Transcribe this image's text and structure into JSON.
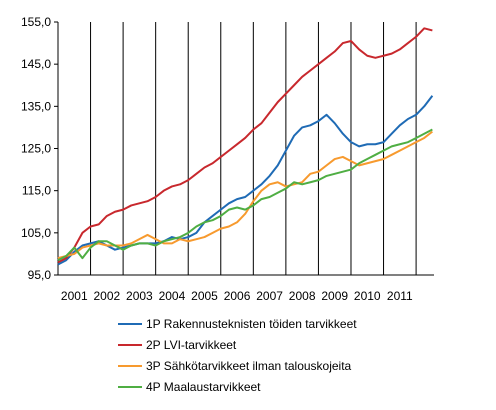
{
  "chart_data": {
    "type": "line",
    "title": "",
    "xlabel": "",
    "ylabel": "",
    "ylim": [
      95,
      155
    ],
    "yticks": [
      "95,0",
      "105,0",
      "115,0",
      "125,0",
      "135,0",
      "145,0",
      "155,0"
    ],
    "ytick_values": [
      95,
      105,
      115,
      125,
      135,
      145,
      155
    ],
    "xlim": [
      2000.0,
      2011.55
    ],
    "xticks": [
      "2001",
      "2002",
      "2003",
      "2004",
      "2005",
      "2006",
      "2007",
      "2008",
      "2009",
      "2010",
      "2011"
    ],
    "xtick_values": [
      2000.5,
      2001.5,
      2002.5,
      2003.5,
      2004.5,
      2005.5,
      2006.5,
      2007.5,
      2008.5,
      2009.5,
      2010.5
    ],
    "grid": "vertical year separators",
    "legend_position": "bottom",
    "series": [
      {
        "name": "1P Rakennusteknisten  töiden tarvikkeet",
        "color": "#1f6bb5",
        "points": [
          [
            2000.0,
            97.5
          ],
          [
            2000.25,
            98.5
          ],
          [
            2000.5,
            100.5
          ],
          [
            2000.75,
            102.0
          ],
          [
            2001.0,
            102.5
          ],
          [
            2001.25,
            103.0
          ],
          [
            2001.5,
            102.0
          ],
          [
            2001.75,
            101.0
          ],
          [
            2002.0,
            101.5
          ],
          [
            2002.25,
            102.0
          ],
          [
            2002.5,
            102.5
          ],
          [
            2002.75,
            102.5
          ],
          [
            2003.0,
            102.5
          ],
          [
            2003.25,
            103.0
          ],
          [
            2003.5,
            104.0
          ],
          [
            2003.75,
            103.5
          ],
          [
            2004.0,
            104.0
          ],
          [
            2004.25,
            105.0
          ],
          [
            2004.5,
            107.5
          ],
          [
            2004.75,
            109.0
          ],
          [
            2005.0,
            110.5
          ],
          [
            2005.25,
            112.0
          ],
          [
            2005.5,
            113.0
          ],
          [
            2005.75,
            113.5
          ],
          [
            2006.0,
            115.0
          ],
          [
            2006.25,
            116.5
          ],
          [
            2006.5,
            118.5
          ],
          [
            2006.75,
            121.0
          ],
          [
            2007.0,
            124.5
          ],
          [
            2007.25,
            128.0
          ],
          [
            2007.5,
            130.0
          ],
          [
            2007.75,
            130.5
          ],
          [
            2008.0,
            131.5
          ],
          [
            2008.25,
            133.0
          ],
          [
            2008.5,
            131.0
          ],
          [
            2008.75,
            128.5
          ],
          [
            2009.0,
            126.5
          ],
          [
            2009.25,
            125.5
          ],
          [
            2009.5,
            126.0
          ],
          [
            2009.75,
            126.0
          ],
          [
            2010.0,
            126.5
          ],
          [
            2010.25,
            128.5
          ],
          [
            2010.5,
            130.5
          ],
          [
            2010.75,
            132.0
          ],
          [
            2011.0,
            133.0
          ],
          [
            2011.25,
            135.0
          ],
          [
            2011.5,
            137.5
          ]
        ]
      },
      {
        "name": "2P LVI-tarvikkeet",
        "color": "#c8282d",
        "points": [
          [
            2000.0,
            98.0
          ],
          [
            2000.25,
            99.0
          ],
          [
            2000.5,
            101.5
          ],
          [
            2000.75,
            105.0
          ],
          [
            2001.0,
            106.5
          ],
          [
            2001.25,
            107.0
          ],
          [
            2001.5,
            109.0
          ],
          [
            2001.75,
            110.0
          ],
          [
            2002.0,
            110.5
          ],
          [
            2002.25,
            111.5
          ],
          [
            2002.5,
            112.0
          ],
          [
            2002.75,
            112.5
          ],
          [
            2003.0,
            113.5
          ],
          [
            2003.25,
            115.0
          ],
          [
            2003.5,
            116.0
          ],
          [
            2003.75,
            116.5
          ],
          [
            2004.0,
            117.5
          ],
          [
            2004.25,
            119.0
          ],
          [
            2004.5,
            120.5
          ],
          [
            2004.75,
            121.5
          ],
          [
            2005.0,
            123.0
          ],
          [
            2005.25,
            124.5
          ],
          [
            2005.5,
            126.0
          ],
          [
            2005.75,
            127.5
          ],
          [
            2006.0,
            129.5
          ],
          [
            2006.25,
            131.0
          ],
          [
            2006.5,
            133.5
          ],
          [
            2006.75,
            136.0
          ],
          [
            2007.0,
            138.0
          ],
          [
            2007.25,
            140.0
          ],
          [
            2007.5,
            142.0
          ],
          [
            2007.75,
            143.5
          ],
          [
            2008.0,
            145.0
          ],
          [
            2008.25,
            146.5
          ],
          [
            2008.5,
            148.0
          ],
          [
            2008.75,
            150.0
          ],
          [
            2009.0,
            150.5
          ],
          [
            2009.25,
            148.5
          ],
          [
            2009.5,
            147.0
          ],
          [
            2009.75,
            146.5
          ],
          [
            2010.0,
            147.0
          ],
          [
            2010.25,
            147.5
          ],
          [
            2010.5,
            148.5
          ],
          [
            2010.75,
            150.0
          ],
          [
            2011.0,
            151.5
          ],
          [
            2011.25,
            153.5
          ],
          [
            2011.5,
            153.0
          ]
        ]
      },
      {
        "name": "3P Sähkötarvikkeet  ilman talouskojeita",
        "color": "#f79a2e",
        "points": [
          [
            2000.0,
            99.0
          ],
          [
            2000.25,
            99.5
          ],
          [
            2000.5,
            100.0
          ],
          [
            2000.75,
            101.5
          ],
          [
            2001.0,
            102.0
          ],
          [
            2001.25,
            102.5
          ],
          [
            2001.5,
            102.0
          ],
          [
            2001.75,
            102.0
          ],
          [
            2002.0,
            102.0
          ],
          [
            2002.25,
            102.5
          ],
          [
            2002.5,
            103.5
          ],
          [
            2002.75,
            104.5
          ],
          [
            2003.0,
            103.5
          ],
          [
            2003.25,
            102.5
          ],
          [
            2003.5,
            102.5
          ],
          [
            2003.75,
            103.5
          ],
          [
            2004.0,
            103.0
          ],
          [
            2004.25,
            103.5
          ],
          [
            2004.5,
            104.0
          ],
          [
            2004.75,
            105.0
          ],
          [
            2005.0,
            106.0
          ],
          [
            2005.25,
            106.5
          ],
          [
            2005.5,
            107.5
          ],
          [
            2005.75,
            109.5
          ],
          [
            2006.0,
            112.5
          ],
          [
            2006.25,
            115.0
          ],
          [
            2006.5,
            116.5
          ],
          [
            2006.75,
            117.0
          ],
          [
            2007.0,
            116.0
          ],
          [
            2007.25,
            116.5
          ],
          [
            2007.5,
            117.0
          ],
          [
            2007.75,
            119.0
          ],
          [
            2008.0,
            119.5
          ],
          [
            2008.25,
            121.0
          ],
          [
            2008.5,
            122.5
          ],
          [
            2008.75,
            123.0
          ],
          [
            2009.0,
            122.0
          ],
          [
            2009.25,
            121.0
          ],
          [
            2009.5,
            121.5
          ],
          [
            2009.75,
            122.0
          ],
          [
            2010.0,
            122.5
          ],
          [
            2010.25,
            123.5
          ],
          [
            2010.5,
            124.5
          ],
          [
            2010.75,
            125.5
          ],
          [
            2011.0,
            126.5
          ],
          [
            2011.25,
            127.5
          ],
          [
            2011.5,
            129.0
          ]
        ]
      },
      {
        "name": "4P Maalaustarvikkeet",
        "color": "#4fae43",
        "points": [
          [
            2000.0,
            98.5
          ],
          [
            2000.25,
            99.5
          ],
          [
            2000.5,
            101.5
          ],
          [
            2000.75,
            99.0
          ],
          [
            2001.0,
            101.5
          ],
          [
            2001.25,
            103.0
          ],
          [
            2001.5,
            103.0
          ],
          [
            2001.75,
            102.0
          ],
          [
            2002.0,
            101.0
          ],
          [
            2002.25,
            102.0
          ],
          [
            2002.5,
            102.5
          ],
          [
            2002.75,
            102.5
          ],
          [
            2003.0,
            102.0
          ],
          [
            2003.25,
            103.0
          ],
          [
            2003.5,
            103.5
          ],
          [
            2003.75,
            104.0
          ],
          [
            2004.0,
            105.0
          ],
          [
            2004.25,
            106.5
          ],
          [
            2004.5,
            107.5
          ],
          [
            2004.75,
            108.0
          ],
          [
            2005.0,
            109.0
          ],
          [
            2005.25,
            110.5
          ],
          [
            2005.5,
            111.0
          ],
          [
            2005.75,
            110.5
          ],
          [
            2006.0,
            111.5
          ],
          [
            2006.25,
            113.0
          ],
          [
            2006.5,
            113.5
          ],
          [
            2006.75,
            114.5
          ],
          [
            2007.0,
            115.5
          ],
          [
            2007.25,
            117.0
          ],
          [
            2007.5,
            116.5
          ],
          [
            2007.75,
            117.0
          ],
          [
            2008.0,
            117.5
          ],
          [
            2008.25,
            118.5
          ],
          [
            2008.5,
            119.0
          ],
          [
            2008.75,
            119.5
          ],
          [
            2009.0,
            120.0
          ],
          [
            2009.25,
            121.5
          ],
          [
            2009.5,
            122.5
          ],
          [
            2009.75,
            123.5
          ],
          [
            2010.0,
            124.5
          ],
          [
            2010.25,
            125.5
          ],
          [
            2010.5,
            126.0
          ],
          [
            2010.75,
            126.5
          ],
          [
            2011.0,
            127.5
          ],
          [
            2011.25,
            128.5
          ],
          [
            2011.5,
            129.5
          ]
        ]
      }
    ]
  }
}
